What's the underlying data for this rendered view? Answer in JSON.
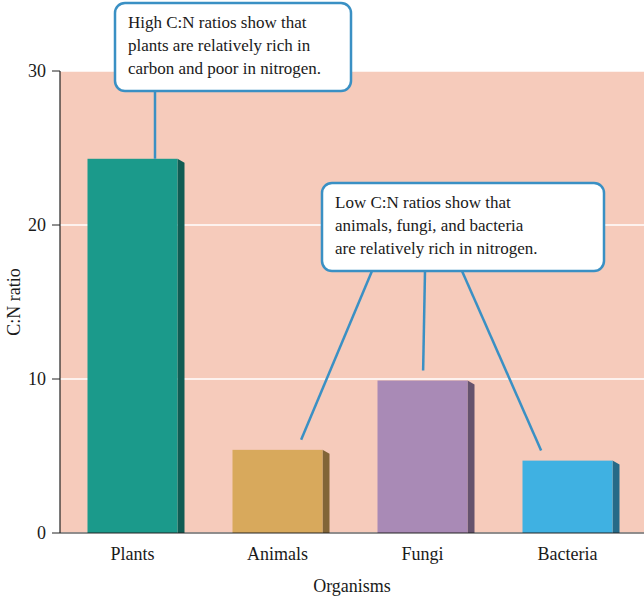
{
  "chart_data": {
    "type": "bar",
    "categories": [
      "Plants",
      "Animals",
      "Fungi",
      "Bacteria"
    ],
    "values": [
      24.3,
      5.4,
      9.9,
      4.7
    ],
    "colors": [
      "#1b9a8b",
      "#d8a95c",
      "#a98ab6",
      "#3fb1e2"
    ],
    "ylim": [
      0,
      30
    ],
    "yticks": [
      0,
      10,
      20,
      30
    ],
    "grid": true,
    "x_label": "Organisms",
    "y_label": "C:N ratio",
    "annotations": [
      {
        "lines": [
          "High C:N ratios show that",
          "plants are relatively rich in",
          "carbon and poor in nitrogen."
        ],
        "targets": [
          "Plants"
        ]
      },
      {
        "lines": [
          "Low C:N ratios show that",
          "animals, fungi, and bacteria",
          "are relatively rich in nitrogen."
        ],
        "targets": [
          "Animals",
          "Fungi",
          "Bacteria"
        ]
      }
    ]
  }
}
